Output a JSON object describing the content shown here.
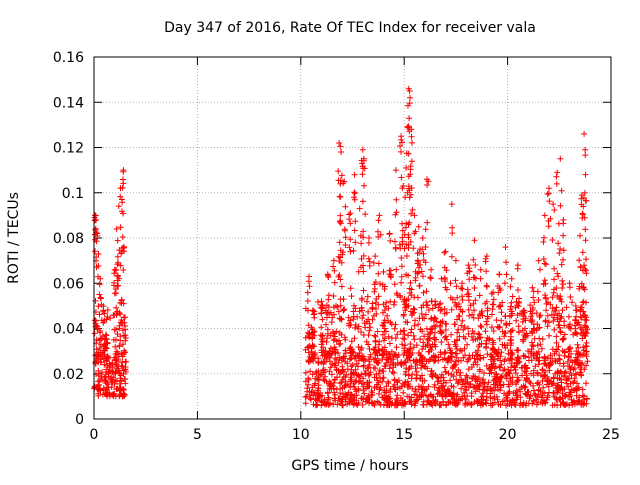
{
  "chart_data": {
    "type": "scatter",
    "title": "Day 347 of 2016, Rate Of TEC Index for receiver vala",
    "xlabel": "GPS time / hours",
    "ylabel": "ROTI / TECUs",
    "xlim": [
      0,
      25
    ],
    "ylim": [
      0,
      0.16
    ],
    "x_ticks": [
      0,
      5,
      10,
      15,
      20,
      25
    ],
    "y_ticks": [
      0,
      0.02,
      0.04,
      0.06,
      0.08,
      0.1,
      0.12,
      0.14,
      0.16
    ],
    "x_tick_labels": [
      "0",
      "5",
      "10",
      "15",
      "20",
      "25"
    ],
    "y_tick_labels": [
      "0",
      "0.02",
      "0.04",
      "0.06",
      "0.08",
      "0.1",
      "0.12",
      "0.14",
      "0.16"
    ],
    "grid": true,
    "marker": "plus",
    "color": "#ff0000",
    "series": [
      {
        "name": "ROTI",
        "segments": [
          {
            "x_range": [
              0.0,
              1.55
            ],
            "baseline": [
              0.01,
              0.028
            ]
          },
          {
            "x_range": [
              10.2,
              23.85
            ],
            "baseline": [
              0.006,
              0.03
            ]
          }
        ],
        "peaks": [
          [
            0.05,
            0.09
          ],
          [
            0.1,
            0.088
          ],
          [
            0.15,
            0.082
          ],
          [
            0.3,
            0.062
          ],
          [
            0.45,
            0.048
          ],
          [
            0.6,
            0.044
          ],
          [
            1.0,
            0.066
          ],
          [
            1.1,
            0.084
          ],
          [
            1.2,
            0.094
          ],
          [
            1.28,
            0.102
          ],
          [
            1.35,
            0.097
          ],
          [
            1.42,
            0.11
          ],
          [
            1.5,
            0.045
          ],
          [
            10.4,
            0.063
          ],
          [
            10.6,
            0.048
          ],
          [
            11.0,
            0.052
          ],
          [
            11.3,
            0.064
          ],
          [
            11.6,
            0.07
          ],
          [
            11.85,
            0.122
          ],
          [
            11.95,
            0.118
          ],
          [
            12.1,
            0.105
          ],
          [
            12.4,
            0.091
          ],
          [
            12.6,
            0.108
          ],
          [
            12.85,
            0.093
          ],
          [
            13.0,
            0.119
          ],
          [
            13.05,
            0.115
          ],
          [
            13.3,
            0.08
          ],
          [
            13.6,
            0.072
          ],
          [
            13.8,
            0.09
          ],
          [
            14.0,
            0.065
          ],
          [
            14.3,
            0.082
          ],
          [
            14.6,
            0.11
          ],
          [
            14.85,
            0.125
          ],
          [
            14.95,
            0.103
          ],
          [
            15.05,
            0.098
          ],
          [
            15.15,
            0.129
          ],
          [
            15.22,
            0.146
          ],
          [
            15.28,
            0.142
          ],
          [
            15.35,
            0.128
          ],
          [
            15.5,
            0.09
          ],
          [
            15.7,
            0.085
          ],
          [
            15.9,
            0.08
          ],
          [
            16.1,
            0.106
          ],
          [
            16.3,
            0.066
          ],
          [
            16.5,
            0.052
          ],
          [
            16.8,
            0.062
          ],
          [
            17.0,
            0.074
          ],
          [
            17.3,
            0.095
          ],
          [
            17.5,
            0.07
          ],
          [
            17.8,
            0.06
          ],
          [
            18.1,
            0.068
          ],
          [
            18.4,
            0.079
          ],
          [
            18.7,
            0.066
          ],
          [
            19.0,
            0.072
          ],
          [
            19.3,
            0.056
          ],
          [
            19.6,
            0.064
          ],
          [
            19.9,
            0.076
          ],
          [
            20.2,
            0.062
          ],
          [
            20.5,
            0.068
          ],
          [
            20.8,
            0.048
          ],
          [
            21.2,
            0.058
          ],
          [
            21.5,
            0.07
          ],
          [
            21.8,
            0.09
          ],
          [
            22.0,
            0.102
          ],
          [
            22.2,
            0.095
          ],
          [
            22.4,
            0.109
          ],
          [
            22.55,
            0.115
          ],
          [
            22.7,
            0.088
          ],
          [
            23.0,
            0.06
          ],
          [
            23.3,
            0.05
          ],
          [
            23.5,
            0.081
          ],
          [
            23.6,
            0.099
          ],
          [
            23.7,
            0.126
          ],
          [
            23.75,
            0.119
          ],
          [
            23.8,
            0.045
          ]
        ]
      }
    ]
  }
}
